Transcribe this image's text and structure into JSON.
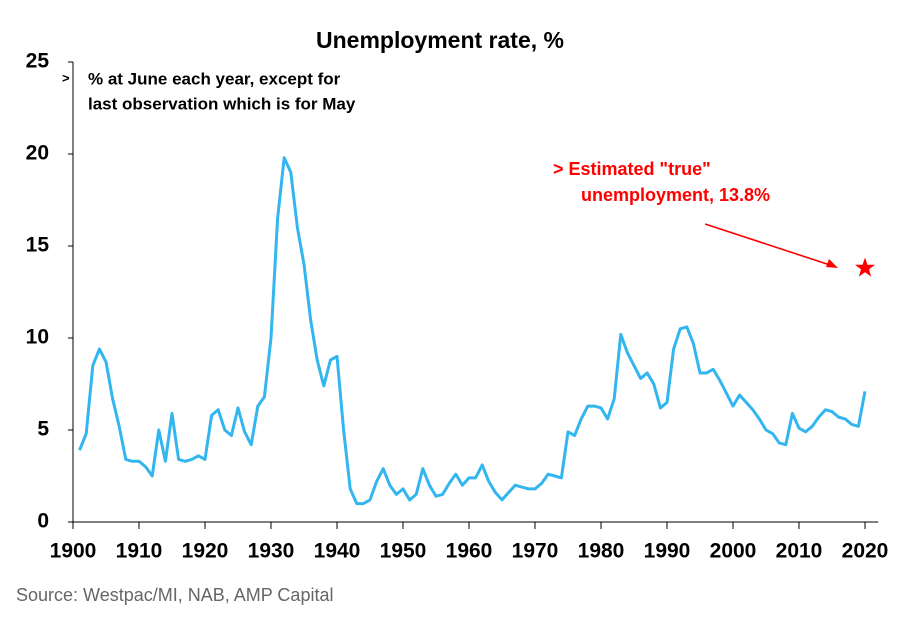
{
  "chart_data": {
    "type": "line",
    "title": "Unemployment rate, %",
    "note_marker": ">",
    "subtitle": [
      "% at June each year, except for",
      "last observation which is for May"
    ],
    "source": "Source: Westpac/MI, NAB, AMP Capital",
    "x": [
      1901,
      1902,
      1903,
      1904,
      1905,
      1906,
      1907,
      1908,
      1909,
      1910,
      1911,
      1912,
      1913,
      1914,
      1915,
      1916,
      1917,
      1918,
      1919,
      1920,
      1921,
      1922,
      1923,
      1924,
      1925,
      1926,
      1927,
      1928,
      1929,
      1930,
      1931,
      1932,
      1933,
      1934,
      1935,
      1936,
      1937,
      1938,
      1939,
      1940,
      1941,
      1942,
      1943,
      1944,
      1945,
      1946,
      1947,
      1948,
      1949,
      1950,
      1951,
      1952,
      1953,
      1954,
      1955,
      1956,
      1957,
      1958,
      1959,
      1960,
      1961,
      1962,
      1963,
      1964,
      1965,
      1966,
      1967,
      1968,
      1969,
      1970,
      1971,
      1972,
      1973,
      1974,
      1975,
      1976,
      1977,
      1978,
      1979,
      1980,
      1981,
      1982,
      1983,
      1984,
      1985,
      1986,
      1987,
      1988,
      1989,
      1990,
      1991,
      1992,
      1993,
      1994,
      1995,
      1996,
      1997,
      1998,
      1999,
      2000,
      2001,
      2002,
      2003,
      2004,
      2005,
      2006,
      2007,
      2008,
      2009,
      2010,
      2011,
      2012,
      2013,
      2014,
      2015,
      2016,
      2017,
      2018,
      2019,
      2020
    ],
    "series": [
      {
        "name": "Unemployment rate",
        "color": "#33b5f0",
        "values": [
          3.9,
          4.8,
          8.5,
          9.4,
          8.7,
          6.7,
          5.2,
          3.4,
          3.3,
          3.3,
          3.0,
          2.5,
          5.0,
          3.3,
          5.9,
          3.4,
          3.3,
          3.4,
          3.6,
          3.4,
          5.8,
          6.1,
          5.0,
          4.7,
          6.2,
          4.9,
          4.2,
          6.3,
          6.8,
          10.0,
          16.5,
          19.8,
          19.0,
          16.0,
          14.0,
          11.0,
          8.8,
          7.4,
          8.8,
          9.0,
          5.0,
          1.8,
          1.0,
          1.0,
          1.2,
          2.2,
          2.9,
          2.0,
          1.5,
          1.8,
          1.2,
          1.5,
          2.9,
          2.0,
          1.4,
          1.5,
          2.1,
          2.6,
          2.0,
          2.4,
          2.4,
          3.1,
          2.2,
          1.6,
          1.2,
          1.6,
          2.0,
          1.9,
          1.8,
          1.8,
          2.1,
          2.6,
          2.5,
          2.4,
          4.9,
          4.7,
          5.6,
          6.3,
          6.3,
          6.2,
          5.6,
          6.7,
          10.2,
          9.2,
          8.5,
          7.8,
          8.1,
          7.5,
          6.2,
          6.5,
          9.4,
          10.5,
          10.6,
          9.7,
          8.1,
          8.1,
          8.3,
          7.7,
          7.0,
          6.3,
          6.9,
          6.5,
          6.1,
          5.6,
          5.0,
          4.8,
          4.3,
          4.2,
          5.9,
          5.1,
          4.9,
          5.2,
          5.7,
          6.1,
          6.0,
          5.7,
          5.6,
          5.3,
          5.2,
          7.1
        ]
      }
    ],
    "annotation": {
      "text": [
        "> Estimated \"true\"",
        "unemployment, 13.8%"
      ],
      "x": 2020,
      "y": 13.8,
      "color": "#ff0000"
    },
    "xlim": [
      1900,
      2022
    ],
    "xticks": [
      1900,
      1910,
      1920,
      1930,
      1940,
      1950,
      1960,
      1970,
      1980,
      1990,
      2000,
      2010,
      2020
    ],
    "ylim": [
      0,
      25
    ],
    "yticks": [
      0,
      5,
      10,
      15,
      20,
      25
    ]
  }
}
